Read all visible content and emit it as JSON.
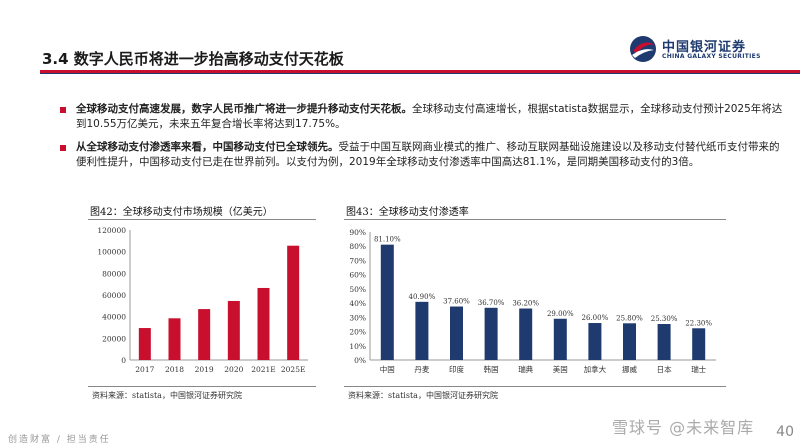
{
  "header": {
    "title": "3.4  数字人民币将进一步抬高移动支付天花板",
    "logo_cn": "中国银河证券",
    "logo_en": "CHINA GALAXY SECURITIES",
    "brand_red": "#c8102e",
    "brand_blue": "#1e3a6e"
  },
  "bullets": [
    {
      "bold": "全球移动支付高速发展，数字人民币推广将进一步提升移动支付天花板。",
      "text": "全球移动支付高速增长，根据statista数据显示，全球移动支付预计2025年将达到10.55万亿美元，未来五年复合增长率将达到17.75%。"
    },
    {
      "bold": "从全球移动支付渗透率来看，中国移动支付已全球领先。",
      "text": "受益于中国互联网商业模式的推广、移动互联网基础设施建设以及移动支付替代纸币支付带来的便利性提升，中国移动支付已走在世界前列。以支付为例，2019年全球移动支付渗透率中国高达81.1%，是同期美国移动支付的3倍。"
    }
  ],
  "chart_data": [
    {
      "type": "bar",
      "title": "图42：全球移动支付市场规模（亿美元）",
      "categories": [
        "2017",
        "2018",
        "2019",
        "2020",
        "2021E",
        "2025E"
      ],
      "values": [
        29500,
        38500,
        47000,
        54500,
        66500,
        105500
      ],
      "ylim": [
        0,
        120000
      ],
      "yticks": [
        "0",
        "20000",
        "40000",
        "60000",
        "80000",
        "100000",
        "120000"
      ],
      "color": "#c8102e",
      "source": "资料来源：statista，中国银河证券研究院"
    },
    {
      "type": "bar",
      "title": "图43：全球移动支付渗透率",
      "categories": [
        "中国",
        "丹麦",
        "印度",
        "韩国",
        "瑞典",
        "美国",
        "加拿大",
        "挪威",
        "日本",
        "瑞士"
      ],
      "values": [
        81.1,
        40.9,
        37.6,
        36.7,
        36.2,
        29.0,
        26.0,
        25.8,
        25.3,
        22.3
      ],
      "labels": [
        "81.10%",
        "40.90%",
        "37.60%",
        "36.70%",
        "36.20%",
        "29.00%",
        "26.00%",
        "25.80%",
        "25.30%",
        "22.30%"
      ],
      "ylim": [
        0,
        90
      ],
      "yticks": [
        "0%",
        "10%",
        "20%",
        "30%",
        "40%",
        "50%",
        "60%",
        "70%",
        "80%",
        "90%"
      ],
      "color": "#1e3a6e",
      "source": "资料来源：statista，中国银河证券研究院"
    }
  ],
  "footer": {
    "left": "创造财富 / 担当责任",
    "page": "40",
    "watermark": "雪球号 @未来智库"
  }
}
